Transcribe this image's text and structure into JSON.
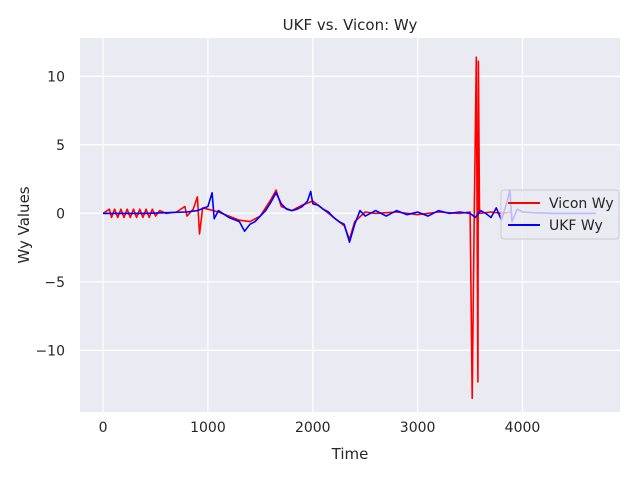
{
  "chart_data": {
    "type": "line",
    "title": "UKF vs. Vicon: Wy",
    "xlabel": "Time",
    "ylabel": "Wy Values",
    "xlim": [
      -220,
      4930
    ],
    "ylim": [
      -14.5,
      12.8
    ],
    "xticks": [
      0,
      1000,
      2000,
      3000,
      4000
    ],
    "yticks": [
      10,
      5,
      0,
      -5,
      -10
    ],
    "xtick_labels": [
      "0",
      "1000",
      "2000",
      "3000",
      "4000"
    ],
    "ytick_labels": [
      "10",
      "5",
      "0",
      "−5",
      "−10"
    ],
    "grid": true,
    "legend_position": "center-right",
    "background_color": "#eaeaf2",
    "grid_color": "#ffffff",
    "series": [
      {
        "name": "Vicon Wy",
        "color": "#ff0000",
        "points": [
          [
            0,
            0
          ],
          [
            60,
            0.3
          ],
          [
            80,
            -0.3
          ],
          [
            110,
            0.3
          ],
          [
            140,
            -0.3
          ],
          [
            170,
            0.3
          ],
          [
            200,
            -0.3
          ],
          [
            230,
            0.3
          ],
          [
            260,
            -0.3
          ],
          [
            290,
            0.3
          ],
          [
            320,
            -0.3
          ],
          [
            350,
            0.3
          ],
          [
            380,
            -0.3
          ],
          [
            410,
            0.3
          ],
          [
            440,
            -0.3
          ],
          [
            470,
            0.3
          ],
          [
            500,
            -0.2
          ],
          [
            540,
            0.2
          ],
          [
            600,
            0
          ],
          [
            700,
            0.1
          ],
          [
            780,
            0.5
          ],
          [
            800,
            -0.2
          ],
          [
            860,
            0.3
          ],
          [
            900,
            1.2
          ],
          [
            920,
            -1.5
          ],
          [
            950,
            0.4
          ],
          [
            1000,
            0.3
          ],
          [
            1100,
            0.1
          ],
          [
            1200,
            -0.2
          ],
          [
            1300,
            -0.5
          ],
          [
            1400,
            -0.6
          ],
          [
            1500,
            -0.2
          ],
          [
            1600,
            1.0
          ],
          [
            1650,
            1.7
          ],
          [
            1700,
            0.5
          ],
          [
            1800,
            0.2
          ],
          [
            1900,
            0.6
          ],
          [
            2000,
            0.9
          ],
          [
            2100,
            0.3
          ],
          [
            2200,
            -0.3
          ],
          [
            2300,
            -0.9
          ],
          [
            2350,
            -1.9
          ],
          [
            2400,
            -0.6
          ],
          [
            2500,
            0.1
          ],
          [
            2600,
            0.0
          ],
          [
            2800,
            0.1
          ],
          [
            3000,
            -0.1
          ],
          [
            3200,
            0.1
          ],
          [
            3400,
            0.0
          ],
          [
            3500,
            0.1
          ],
          [
            3520,
            -13.5
          ],
          [
            3540,
            0.3
          ],
          [
            3560,
            11.4
          ],
          [
            3575,
            -12.3
          ],
          [
            3580,
            11.1
          ],
          [
            3590,
            0.0
          ],
          [
            3700,
            0.1
          ],
          [
            3800,
            0.0
          ],
          [
            3900,
            0.1
          ]
        ]
      },
      {
        "name": "UKF Wy",
        "color": "#0000ff",
        "points": [
          [
            0,
            0
          ],
          [
            200,
            0
          ],
          [
            400,
            0.0
          ],
          [
            600,
            0.05
          ],
          [
            800,
            0.1
          ],
          [
            900,
            0.2
          ],
          [
            1000,
            0.5
          ],
          [
            1040,
            1.5
          ],
          [
            1060,
            -0.4
          ],
          [
            1100,
            0.2
          ],
          [
            1200,
            -0.3
          ],
          [
            1300,
            -0.6
          ],
          [
            1350,
            -1.3
          ],
          [
            1400,
            -0.8
          ],
          [
            1450,
            -0.6
          ],
          [
            1500,
            -0.2
          ],
          [
            1550,
            0.2
          ],
          [
            1600,
            0.8
          ],
          [
            1650,
            1.5
          ],
          [
            1700,
            0.7
          ],
          [
            1750,
            0.3
          ],
          [
            1800,
            0.2
          ],
          [
            1850,
            0.3
          ],
          [
            1900,
            0.5
          ],
          [
            1950,
            0.9
          ],
          [
            1980,
            1.6
          ],
          [
            2000,
            0.7
          ],
          [
            2050,
            0.6
          ],
          [
            2100,
            0.3
          ],
          [
            2150,
            0.1
          ],
          [
            2200,
            -0.3
          ],
          [
            2250,
            -0.6
          ],
          [
            2300,
            -0.8
          ],
          [
            2350,
            -2.1
          ],
          [
            2400,
            -0.8
          ],
          [
            2450,
            0.2
          ],
          [
            2500,
            -0.2
          ],
          [
            2600,
            0.2
          ],
          [
            2700,
            -0.2
          ],
          [
            2800,
            0.2
          ],
          [
            2900,
            -0.1
          ],
          [
            3000,
            0.1
          ],
          [
            3100,
            -0.2
          ],
          [
            3200,
            0.2
          ],
          [
            3300,
            0.0
          ],
          [
            3400,
            0.1
          ],
          [
            3500,
            0.0
          ],
          [
            3550,
            -0.3
          ],
          [
            3600,
            0.2
          ],
          [
            3650,
            0.0
          ],
          [
            3700,
            -0.3
          ],
          [
            3750,
            0.4
          ],
          [
            3800,
            -0.5
          ],
          [
            3850,
            0.8
          ],
          [
            3880,
            1.7
          ],
          [
            3900,
            -0.6
          ],
          [
            3950,
            0.3
          ],
          [
            4000,
            0.1
          ],
          [
            4100,
            0.05
          ],
          [
            4300,
            0.0
          ],
          [
            4500,
            0.0
          ],
          [
            4700,
            0.0
          ]
        ]
      }
    ]
  }
}
